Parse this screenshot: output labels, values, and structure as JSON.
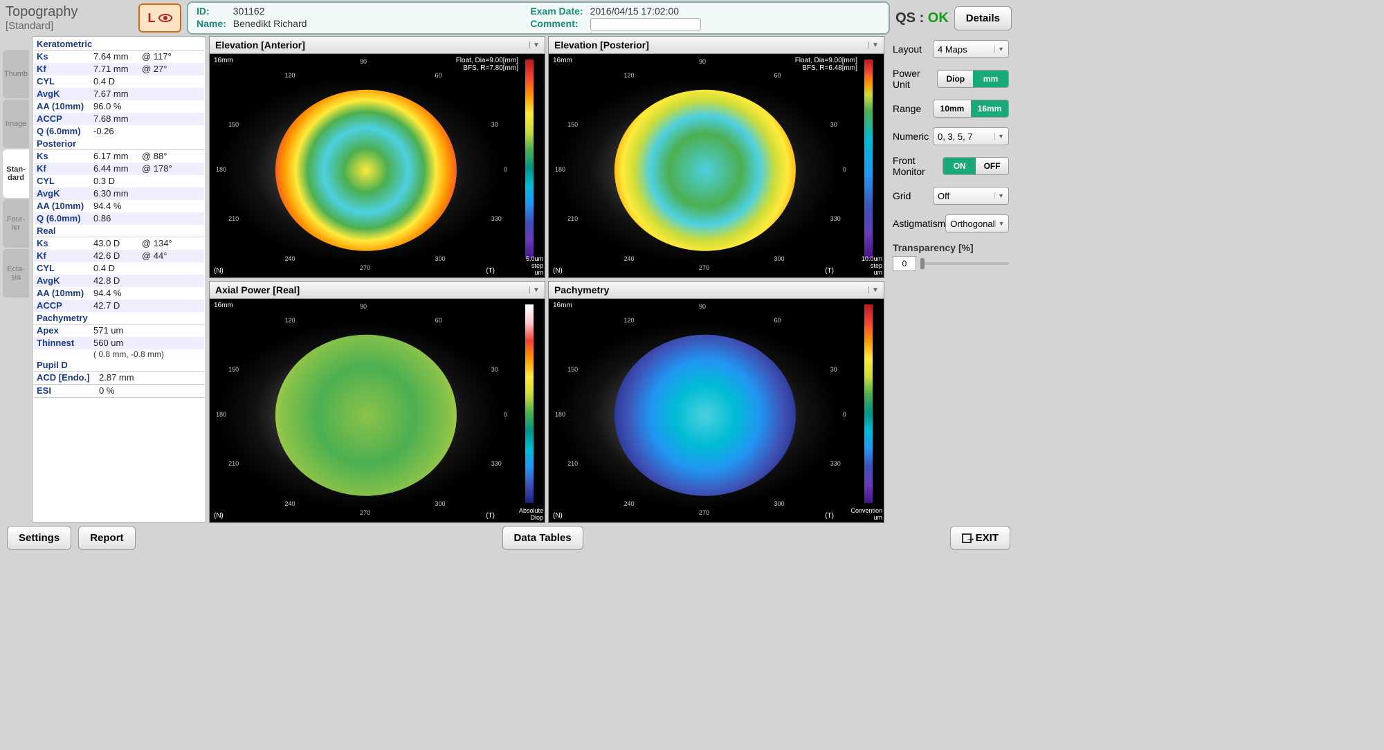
{
  "header": {
    "title": "Topography",
    "subtitle": "[Standard]",
    "eye_side": "L",
    "id_label": "ID:",
    "id": "301162",
    "name_label": "Name:",
    "name": "Benedikt Richard",
    "exam_label": "Exam Date:",
    "exam": "2016/04/15 17:02:00",
    "comment_label": "Comment:",
    "qs_label": "QS :",
    "qs_value": "OK",
    "details": "Details"
  },
  "vtabs": [
    "Thumb",
    "Image",
    "Stan-\ndard",
    "Four-\nier",
    "Ecta-\nsia"
  ],
  "vtab_active": 2,
  "sections": [
    {
      "name": "Keratometric",
      "rows": [
        {
          "k": "Ks",
          "v": "7.64 mm",
          "a": "@ 117°"
        },
        {
          "k": "Kf",
          "v": "7.71 mm",
          "a": "@ 27°"
        },
        {
          "k": "CYL",
          "v": "   0.4 D",
          "a": ""
        },
        {
          "k": "AvgK",
          "v": "7.67 mm",
          "a": ""
        },
        {
          "k": "AA (10mm)",
          "v": "96.0 %",
          "a": ""
        },
        {
          "k": "ACCP",
          "v": "7.68 mm",
          "a": ""
        },
        {
          "k": "Q (6.0mm)",
          "v": "-0.26",
          "a": ""
        }
      ]
    },
    {
      "name": "Posterior",
      "rows": [
        {
          "k": "Ks",
          "v": "6.17 mm",
          "a": "@ 88°"
        },
        {
          "k": "Kf",
          "v": "6.44 mm",
          "a": "@ 178°"
        },
        {
          "k": "CYL",
          "v": "   0.3 D",
          "a": ""
        },
        {
          "k": "AvgK",
          "v": "6.30 mm",
          "a": ""
        },
        {
          "k": "AA (10mm)",
          "v": "94.4 %",
          "a": ""
        },
        {
          "k": "Q (6.0mm)",
          "v": "0.86",
          "a": ""
        }
      ]
    },
    {
      "name": "Real",
      "rows": [
        {
          "k": "Ks",
          "v": "43.0 D",
          "a": "@ 134°"
        },
        {
          "k": "Kf",
          "v": "42.6 D",
          "a": "@ 44°"
        },
        {
          "k": "CYL",
          "v": "   0.4 D",
          "a": ""
        },
        {
          "k": "AvgK",
          "v": "42.8 D",
          "a": ""
        },
        {
          "k": "AA (10mm)",
          "v": "94.4 %",
          "a": ""
        },
        {
          "k": "ACCP",
          "v": "42.7 D",
          "a": ""
        }
      ]
    },
    {
      "name": "Pachymetry",
      "rows": [
        {
          "k": "Apex",
          "v": "571 um",
          "a": ""
        },
        {
          "k": "Thinnest",
          "v": "560 um",
          "a": "",
          "sub": "( 0.8 mm,   -0.8 mm)"
        }
      ]
    },
    {
      "name": "Pupil D",
      "rows": []
    },
    {
      "name": "ACD [Endo.]",
      "rows": [
        {
          "k": "",
          "v": "2.87 mm",
          "a": ""
        }
      ],
      "inline": true
    },
    {
      "name": "ESI",
      "rows": [
        {
          "k": "",
          "v": "   0 %",
          "a": ""
        }
      ],
      "inline": true
    }
  ],
  "maps": [
    {
      "title": "Elevation [Anterior]",
      "tl": "16mm",
      "tr": "Float, Dia=9.00[mm]\nBFS, R=7.80[mm]",
      "bl": "(N)",
      "br": "(T)",
      "cb_top": "130",
      "cb_bot": "-130",
      "cb_step": "5.0um step\num",
      "cls": "topo-a",
      "cb": "cb1"
    },
    {
      "title": "Elevation [Posterior]",
      "tl": "16mm",
      "tr": "Float, Dia=9.00[mm]\nBFS, R=6.48[mm]",
      "bl": "(N)",
      "br": "(T)",
      "cb_top": "260",
      "cb_bot": "-260",
      "cb_step": "10.0um step\num",
      "cls": "topo-b",
      "cb": "cb2"
    },
    {
      "title": "Axial Power [Real]",
      "tl": "16mm",
      "tr": "",
      "bl": "(N)",
      "br": "(T)",
      "cb_top": "101.5",
      "cb_bot": "9.0",
      "cb_step": "Absolute\nDiop",
      "cls": "topo-c",
      "cb": "cb3"
    },
    {
      "title": "Pachymetry",
      "tl": "16mm",
      "tr": "",
      "bl": "(N)",
      "br": "(T)",
      "cb_top": "340",
      "cb_bot": "840",
      "cb_step": "Convention\num",
      "cls": "topo-d",
      "cb": "cb4"
    }
  ],
  "deg_labels": [
    "90",
    "60",
    "120",
    "30",
    "150",
    "0",
    "180",
    "330",
    "210",
    "300",
    "240",
    "270"
  ],
  "controls": {
    "layout_label": "Layout",
    "layout": "4 Maps",
    "power_label": "Power Unit",
    "power_opts": [
      "Diop",
      "mm"
    ],
    "power_sel": 1,
    "range_label": "Range",
    "range_opts": [
      "10mm",
      "16mm"
    ],
    "range_sel": 1,
    "numeric_label": "Numeric",
    "numeric": "0, 3, 5, 7",
    "front_label": "Front Monitor",
    "front_opts": [
      "ON",
      "OFF"
    ],
    "front_sel": 0,
    "grid_label": "Grid",
    "grid": "Off",
    "astig_label": "Astigmatism",
    "astig": "Orthogonal",
    "trans_label": "Transparency [%]",
    "trans": "0"
  },
  "footer": {
    "settings": "Settings",
    "report": "Report",
    "data_tables": "Data Tables",
    "exit": "EXIT"
  }
}
